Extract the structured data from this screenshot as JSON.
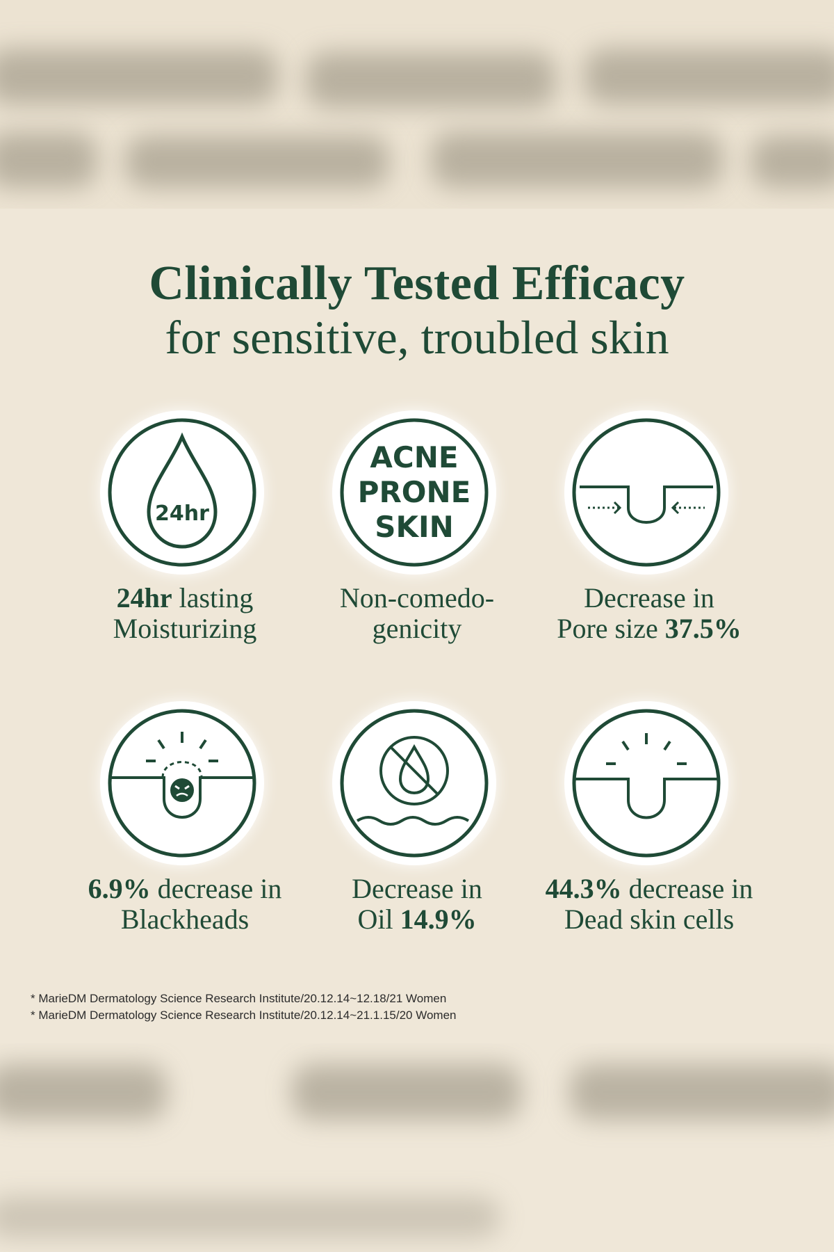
{
  "heading": {
    "title": "Clinically Tested Efficacy",
    "subtitle": "for sensitive, troubled skin"
  },
  "features": [
    {
      "icon": "water-drop-24hr-icon",
      "icon_text": "24hr",
      "caption_bold": "24hr",
      "caption_rest": " lasting",
      "caption_line2": "Moisturizing"
    },
    {
      "icon": "acne-prone-skin-icon",
      "icon_text_lines": [
        "ACNE",
        "PRONE",
        "SKIN"
      ],
      "caption_line1": "Non-comedo-",
      "caption_line2": "genicity"
    },
    {
      "icon": "pore-shrink-icon",
      "caption_line1": "Decrease in",
      "caption_line2_text": "Pore size ",
      "caption_line2_bold": "37.5%"
    },
    {
      "icon": "blackhead-icon",
      "caption_line1_bold": "6.9%",
      "caption_line1_rest": " decrease in",
      "caption_line2": "Blackheads"
    },
    {
      "icon": "no-oil-icon",
      "caption_line1": "Decrease in",
      "caption_line2_text": "Oil ",
      "caption_line2_bold": "14.9%"
    },
    {
      "icon": "dead-skin-icon",
      "caption_line1_bold": "44.3%",
      "caption_line1_rest": " decrease in",
      "caption_line2": "Dead skin cells"
    }
  ],
  "footnotes": [
    "* MarieDM Dermatology Science Research Institute/20.12.14~12.18/21 Women",
    "* MarieDM Dermatology Science Research Institute/20.12.14~21.1.15/20 Women"
  ],
  "colors": {
    "background": "#efe7d8",
    "accent_green": "#1f4a36",
    "icon_fill": "#ffffff"
  }
}
